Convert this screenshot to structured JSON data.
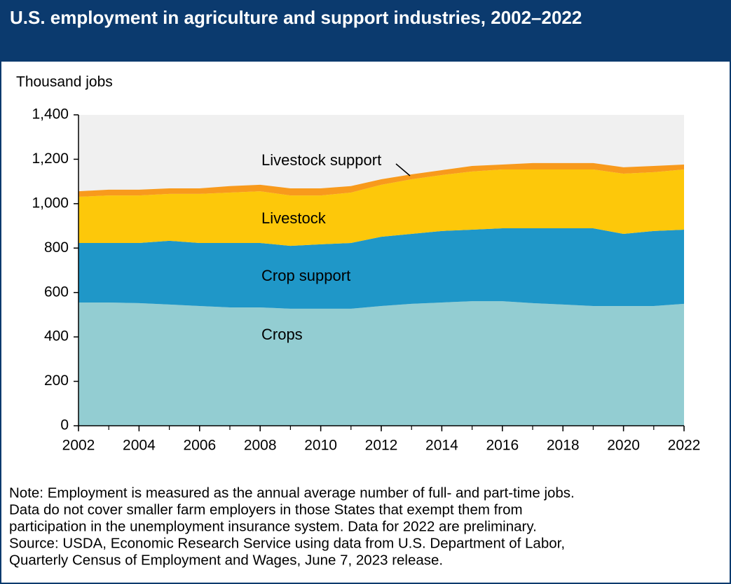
{
  "chart_data": {
    "type": "stacked-area",
    "title": "U.S. employment in agriculture and support industries, 2002–2022",
    "y_label": "Thousand jobs",
    "x": [
      2002,
      2003,
      2004,
      2005,
      2006,
      2007,
      2008,
      2009,
      2010,
      2011,
      2012,
      2013,
      2014,
      2015,
      2016,
      2017,
      2018,
      2019,
      2020,
      2021,
      2022
    ],
    "xlim": [
      2002,
      2022
    ],
    "xticks": [
      2002,
      2004,
      2006,
      2008,
      2010,
      2012,
      2014,
      2016,
      2018,
      2020,
      2022
    ],
    "ylim": [
      0,
      1400
    ],
    "yticks": [
      0,
      200,
      400,
      600,
      800,
      {
        "value": 1000,
        "label": "1,000"
      },
      {
        "value": 1200,
        "label": "1,200"
      },
      {
        "value": 1400,
        "label": "1,400"
      }
    ],
    "series": [
      {
        "name": "Crops",
        "color": "#93cdd2",
        "values": [
          555,
          555,
          552,
          546,
          539,
          533,
          533,
          527,
          527,
          527,
          539,
          549,
          555,
          561,
          561,
          552,
          546,
          539,
          539,
          539,
          549
        ]
      },
      {
        "name": "Crop support",
        "color": "#1f97c8",
        "values": [
          268,
          268,
          271,
          287,
          284,
          290,
          290,
          283,
          290,
          296,
          312,
          315,
          322,
          322,
          328,
          337,
          343,
          350,
          325,
          338,
          334
        ]
      },
      {
        "name": "Livestock",
        "color": "#fdc80a",
        "values": [
          208,
          214,
          214,
          211,
          221,
          227,
          233,
          227,
          220,
          227,
          234,
          246,
          252,
          262,
          265,
          265,
          265,
          265,
          271,
          265,
          271
        ]
      },
      {
        "name": "Livestock support",
        "color": "#f89a1c",
        "values": [
          25,
          26,
          26,
          25,
          25,
          29,
          29,
          32,
          32,
          29,
          25,
          22,
          22,
          25,
          22,
          29,
          29,
          29,
          29,
          28,
          22
        ]
      }
    ],
    "note": [
      "Note: Employment is measured as the annual average number of full- and part-time jobs.",
      "Data do not cover smaller farm employers in those States that exempt them from",
      "participation in the unemployment insurance system. Data for 2022 are preliminary."
    ],
    "source": [
      "Source: USDA, Economic Research Service using data from U.S. Department of Labor,",
      "Quarterly Census of Employment and Wages, June 7, 2023 release."
    ]
  }
}
